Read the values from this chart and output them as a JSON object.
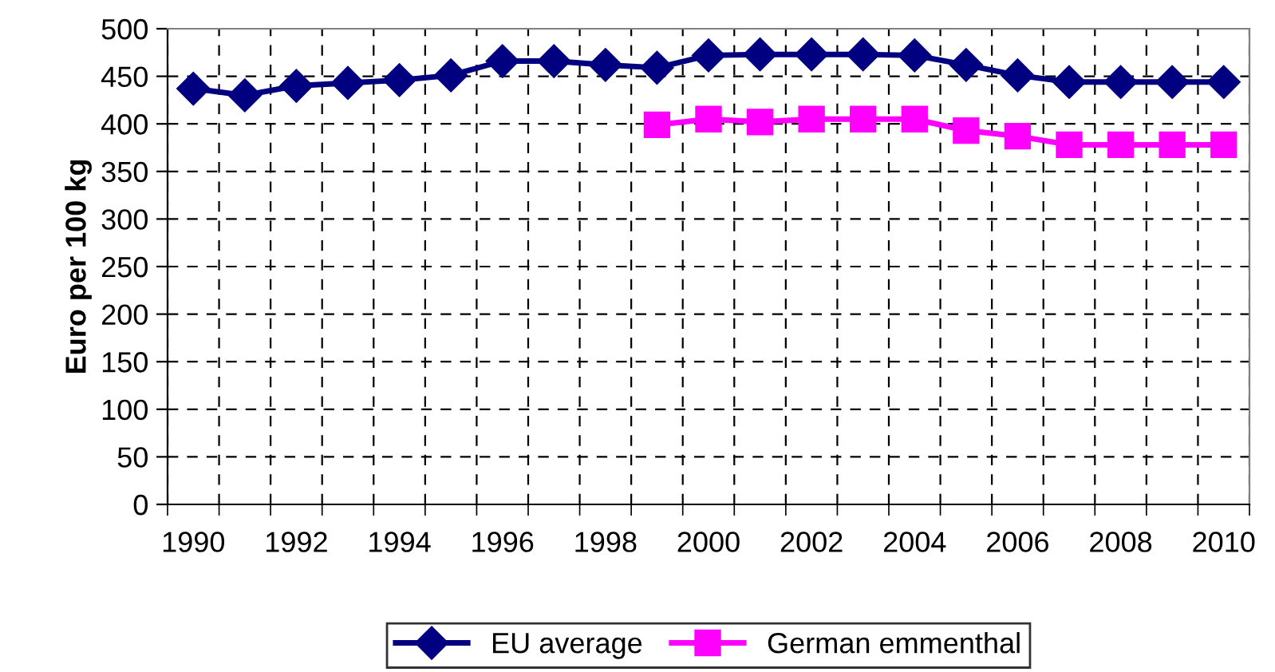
{
  "chart_data": {
    "type": "line",
    "ylabel": "Euro per 100 kg",
    "categories": [
      "1990",
      null,
      "1992",
      null,
      "1994",
      null,
      "1996",
      null,
      "1998",
      null,
      "2000",
      null,
      "2002",
      null,
      "2004",
      null,
      "2006",
      null,
      "2008",
      null,
      "2010"
    ],
    "series": [
      {
        "name": "EU average",
        "color": "#000080",
        "marker": "diamond",
        "values": [
          437,
          430,
          440,
          443,
          446,
          451,
          466,
          466,
          462,
          459,
          472,
          473,
          473,
          473,
          472,
          462,
          451,
          444,
          444,
          444,
          444
        ]
      },
      {
        "name": "German emmenthal",
        "color": "#ff00ff",
        "marker": "square",
        "values": [
          null,
          null,
          null,
          null,
          null,
          null,
          null,
          null,
          null,
          399,
          405,
          402,
          405,
          405,
          405,
          393,
          387,
          378,
          378,
          378,
          378
        ]
      }
    ],
    "ylim": [
      0,
      500
    ],
    "yticks": [
      0,
      50,
      100,
      150,
      200,
      250,
      300,
      350,
      400,
      450,
      500
    ],
    "grid": true,
    "legend": "bottom",
    "line_style": "solid"
  }
}
